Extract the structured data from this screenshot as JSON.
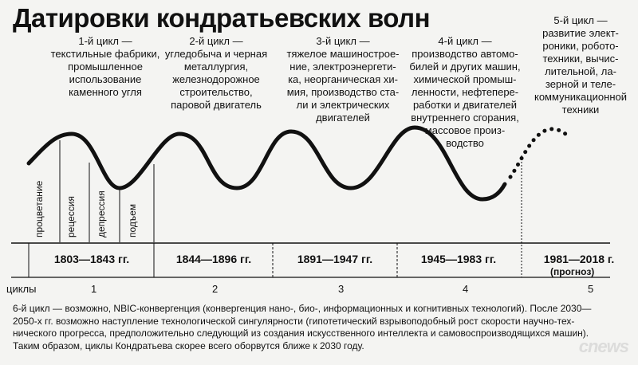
{
  "title": "Датировки кондратьевских волн",
  "cycles": [
    {
      "desc": "1-й цикл —\nтекстильные фабрики,\nпромышленное\nиспользование\nкаменного угля",
      "period": "1803—1843 гг.",
      "number": "1"
    },
    {
      "desc": "2-й цикл —\nугледобыча и черная\nметаллургия,\nжелезнодорожное\nстроительство,\nпаровой двигатель",
      "period": "1844—1896 гг.",
      "number": "2"
    },
    {
      "desc": "3-й цикл —\nтяжелое машинострое-\nние, электроэнергети-\nка, неорганическая хи-\nмия, производство ста-\nли и электрических\nдвигателей",
      "period": "1891—1947 гг.",
      "number": "3"
    },
    {
      "desc": "4-й цикл —\nпроизводство автомо-\nбилей и других машин,\nхимической промыш-\nленности, нефтепере-\nработки и двигателей\nвнутреннего сгорания,\nмассовое произ-\nводство",
      "period": "1945—1983 гг.",
      "number": "4"
    },
    {
      "desc": "5-й цикл —\nразвитие элект-\nроники, робото-\nтехники, вычис-\nлительной, ла-\nзерной и теле-\nкоммуникационной\nтехники",
      "period": "1981—2018 г.",
      "forecast": "(прогноз)",
      "number": "5"
    }
  ],
  "phases": [
    "процветание",
    "рецессия",
    "депрессия",
    "подъем"
  ],
  "axis_label": "циклы",
  "footnote": "6-й цикл — возможно, NBIC-конвергенция (конвергенция нано-, био-, информационных и когнитивных технологий). После 2030—\n2050-х гг. возможно наступление технологической сингулярности (гипотетический взрывоподобный рост скорости научно-тех-\nнического прогресса, предположительно следующий из создания искусственного интеллекта и самовоспроизводящихся машин).\nТаким образом, циклы Кондратьева скорее всего оборвутся ближе к 2030 году.",
  "watermark": "cnews",
  "colors": {
    "background": "#f4f4f2",
    "ink": "#111111",
    "watermark": "#c8c8c8"
  }
}
